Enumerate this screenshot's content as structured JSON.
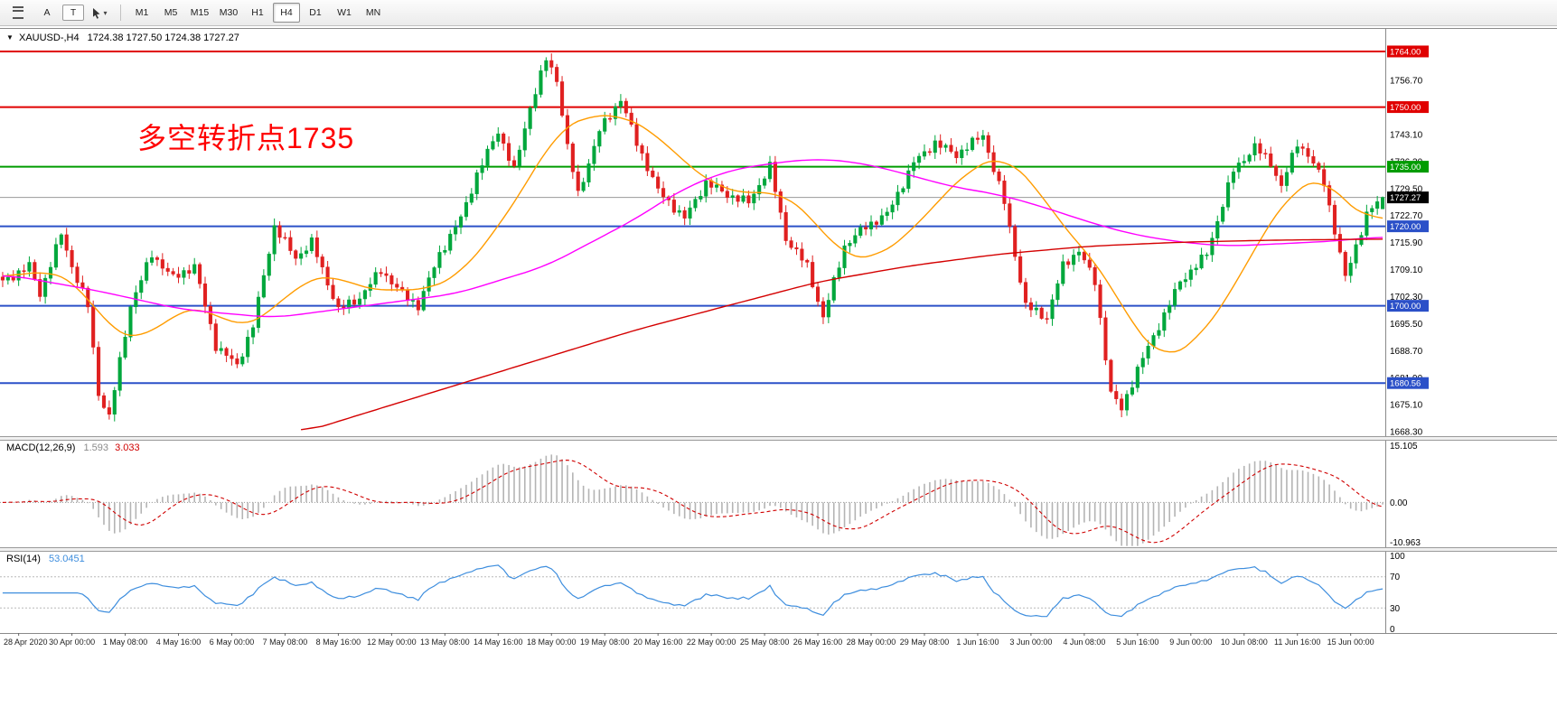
{
  "toolbar": {
    "a_label": "A",
    "t_label": "T",
    "timeframes": {
      "items": [
        "M1",
        "M5",
        "M15",
        "M30",
        "H1",
        "H4",
        "D1",
        "W1",
        "MN"
      ],
      "active": "H4"
    }
  },
  "legend": {
    "symbol": "XAUUSD-,H4",
    "ohlc": "1724.38 1727.50 1724.38 1727.27"
  },
  "annotation": {
    "text": "多空转折点1735",
    "color": "#ff0000"
  },
  "macd_legend": {
    "name": "MACD(12,26,9)",
    "value_main": "1.593",
    "value_signal": "3.033"
  },
  "rsi_legend": {
    "name": "RSI(14)",
    "value": "53.0451"
  },
  "chart_data": {
    "type": "candlestick",
    "symbol": "XAUUSD-",
    "timeframe": "H4",
    "num_candles": 260,
    "ylim": [
      1667.2,
      1769.9
    ],
    "y_ticks": [
      "1756.70",
      "1743.10",
      "1736.30",
      "1729.50",
      "1722.70",
      "1715.90",
      "1709.10",
      "1702.30",
      "1695.50",
      "1688.70",
      "1681.90",
      "1675.10",
      "1668.30"
    ],
    "h_lines": [
      {
        "value": 1764.0,
        "label": "1764.00",
        "color": "#e00000",
        "width": 2
      },
      {
        "value": 1750.0,
        "label": "1750.00",
        "color": "#e00000",
        "width": 2
      },
      {
        "value": 1735.0,
        "label": "1735.00",
        "color": "#009c00",
        "width": 2
      },
      {
        "value": 1720.0,
        "label": "1720.00",
        "color": "#2b50c8",
        "width": 2
      },
      {
        "value": 1700.0,
        "label": "1700.00",
        "color": "#2b50c8",
        "width": 2
      },
      {
        "value": 1680.56,
        "label": "1680.56",
        "color": "#2b50c8",
        "width": 2
      }
    ],
    "current_price": {
      "value": 1727.27,
      "label": "1727.27",
      "badge_color": "#000000"
    },
    "candle_up_color": "#00a73c",
    "candle_down_color": "#e02020",
    "price_path_anchors": [
      [
        0,
        1706
      ],
      [
        5,
        1710
      ],
      [
        7,
        1703
      ],
      [
        11,
        1718
      ],
      [
        13,
        1710
      ],
      [
        16,
        1700
      ],
      [
        18,
        1678
      ],
      [
        20,
        1672
      ],
      [
        24,
        1700
      ],
      [
        28,
        1713
      ],
      [
        32,
        1707
      ],
      [
        36,
        1710
      ],
      [
        40,
        1690
      ],
      [
        44,
        1685
      ],
      [
        47,
        1695
      ],
      [
        51,
        1720
      ],
      [
        55,
        1712
      ],
      [
        58,
        1716
      ],
      [
        63,
        1699
      ],
      [
        67,
        1702
      ],
      [
        71,
        1709
      ],
      [
        75,
        1703
      ],
      [
        78,
        1700
      ],
      [
        82,
        1713
      ],
      [
        86,
        1722
      ],
      [
        89,
        1733
      ],
      [
        93,
        1744
      ],
      [
        96,
        1734
      ],
      [
        99,
        1750
      ],
      [
        102,
        1762
      ],
      [
        104,
        1757
      ],
      [
        106,
        1740
      ],
      [
        108,
        1728
      ],
      [
        112,
        1744
      ],
      [
        116,
        1752
      ],
      [
        119,
        1741
      ],
      [
        123,
        1729
      ],
      [
        128,
        1722
      ],
      [
        132,
        1731
      ],
      [
        136,
        1728
      ],
      [
        140,
        1726
      ],
      [
        144,
        1735
      ],
      [
        147,
        1717
      ],
      [
        151,
        1710
      ],
      [
        154,
        1697
      ],
      [
        158,
        1715
      ],
      [
        162,
        1720
      ],
      [
        166,
        1723
      ],
      [
        171,
        1736
      ],
      [
        175,
        1741
      ],
      [
        179,
        1738
      ],
      [
        184,
        1743
      ],
      [
        188,
        1726
      ],
      [
        192,
        1700
      ],
      [
        196,
        1697
      ],
      [
        199,
        1710
      ],
      [
        202,
        1714
      ],
      [
        205,
        1706
      ],
      [
        208,
        1678
      ],
      [
        210,
        1674
      ],
      [
        213,
        1684
      ],
      [
        217,
        1695
      ],
      [
        221,
        1706
      ],
      [
        226,
        1713
      ],
      [
        231,
        1734
      ],
      [
        235,
        1740
      ],
      [
        238,
        1736
      ],
      [
        240,
        1730
      ],
      [
        243,
        1741
      ],
      [
        245,
        1738
      ],
      [
        248,
        1731
      ],
      [
        252,
        1707
      ],
      [
        256,
        1723
      ],
      [
        259,
        1727.27
      ]
    ],
    "moving_averages": [
      {
        "name": "fast-ma",
        "color": "#ff9c00",
        "anchors": [
          [
            0,
            1707
          ],
          [
            8,
            1709
          ],
          [
            14,
            1706
          ],
          [
            20,
            1694
          ],
          [
            26,
            1691
          ],
          [
            32,
            1698
          ],
          [
            38,
            1700
          ],
          [
            44,
            1694
          ],
          [
            50,
            1698
          ],
          [
            56,
            1706
          ],
          [
            62,
            1708
          ],
          [
            68,
            1704
          ],
          [
            74,
            1704
          ],
          [
            80,
            1704
          ],
          [
            86,
            1708
          ],
          [
            92,
            1718
          ],
          [
            98,
            1730
          ],
          [
            104,
            1744
          ],
          [
            110,
            1748
          ],
          [
            116,
            1748
          ],
          [
            122,
            1744
          ],
          [
            128,
            1736
          ],
          [
            134,
            1730
          ],
          [
            140,
            1728
          ],
          [
            146,
            1729
          ],
          [
            152,
            1722
          ],
          [
            158,
            1712
          ],
          [
            164,
            1712
          ],
          [
            170,
            1718
          ],
          [
            176,
            1727
          ],
          [
            182,
            1735
          ],
          [
            188,
            1738
          ],
          [
            194,
            1730
          ],
          [
            200,
            1718
          ],
          [
            206,
            1710
          ],
          [
            212,
            1695
          ],
          [
            218,
            1686
          ],
          [
            224,
            1691
          ],
          [
            230,
            1702
          ],
          [
            236,
            1717
          ],
          [
            242,
            1729
          ],
          [
            248,
            1733
          ],
          [
            252,
            1726
          ],
          [
            256,
            1721
          ],
          [
            259,
            1723
          ]
        ]
      },
      {
        "name": "mid-ma",
        "color": "#ff00ff",
        "anchors": [
          [
            0,
            1708
          ],
          [
            17,
            1704
          ],
          [
            34,
            1699
          ],
          [
            51,
            1697
          ],
          [
            68,
            1700
          ],
          [
            85,
            1703
          ],
          [
            102,
            1710
          ],
          [
            119,
            1722
          ],
          [
            127,
            1729
          ],
          [
            136,
            1734
          ],
          [
            145,
            1736
          ],
          [
            153,
            1737
          ],
          [
            161,
            1736
          ],
          [
            170,
            1733
          ],
          [
            178,
            1730
          ],
          [
            187,
            1728
          ],
          [
            195,
            1725
          ],
          [
            204,
            1721
          ],
          [
            212,
            1718
          ],
          [
            221,
            1716
          ],
          [
            230,
            1715
          ],
          [
            238,
            1715.5
          ],
          [
            246,
            1716
          ],
          [
            252,
            1716.5
          ],
          [
            259,
            1717.5
          ]
        ]
      },
      {
        "name": "slow-ma",
        "color": "#d40000",
        "anchors": [
          [
            56,
            1668
          ],
          [
            68,
            1673
          ],
          [
            85,
            1680
          ],
          [
            102,
            1687
          ],
          [
            119,
            1694
          ],
          [
            136,
            1700
          ],
          [
            153,
            1706
          ],
          [
            170,
            1710
          ],
          [
            187,
            1713
          ],
          [
            204,
            1715
          ],
          [
            221,
            1716
          ],
          [
            238,
            1716.5
          ],
          [
            259,
            1716.8
          ]
        ]
      }
    ],
    "x_labels": [
      "28 Apr 2020",
      "30 Apr 00:00",
      "1 May 08:00",
      "4 May 16:00",
      "6 May 00:00",
      "7 May 08:00",
      "8 May 16:00",
      "12 May 00:00",
      "13 May 08:00",
      "14 May 16:00",
      "18 May 00:00",
      "19 May 08:00",
      "20 May 16:00",
      "22 May 00:00",
      "25 May 08:00",
      "26 May 16:00",
      "28 May 00:00",
      "29 May 08:00",
      "1 Jun 16:00",
      "3 Jun 00:00",
      "4 Jun 08:00",
      "5 Jun 16:00",
      "9 Jun 00:00",
      "10 Jun 08:00",
      "11 Jun 16:00",
      "15 Jun 00:00"
    ],
    "label_every": 10,
    "label_offset": 3,
    "indicators": {
      "macd": {
        "label": "MACD(12,26,9)",
        "values": [
          1.593,
          3.033
        ],
        "ylim": [
          -10.963,
          15.105
        ],
        "y_ticks": [
          "15.105",
          "0.00",
          "-10.963"
        ],
        "fast": 12,
        "slow": 26,
        "signal": 9,
        "histogram_color": "#b4b4b4",
        "signal_color": "#d00000"
      },
      "rsi": {
        "label": "RSI(14)",
        "value": 53.0451,
        "period": 14,
        "levels": [
          70,
          30
        ],
        "y_ticks": [
          "100",
          "70",
          "30",
          "0"
        ],
        "line_color": "#3e8ede",
        "ylim": [
          0,
          100
        ]
      }
    }
  }
}
